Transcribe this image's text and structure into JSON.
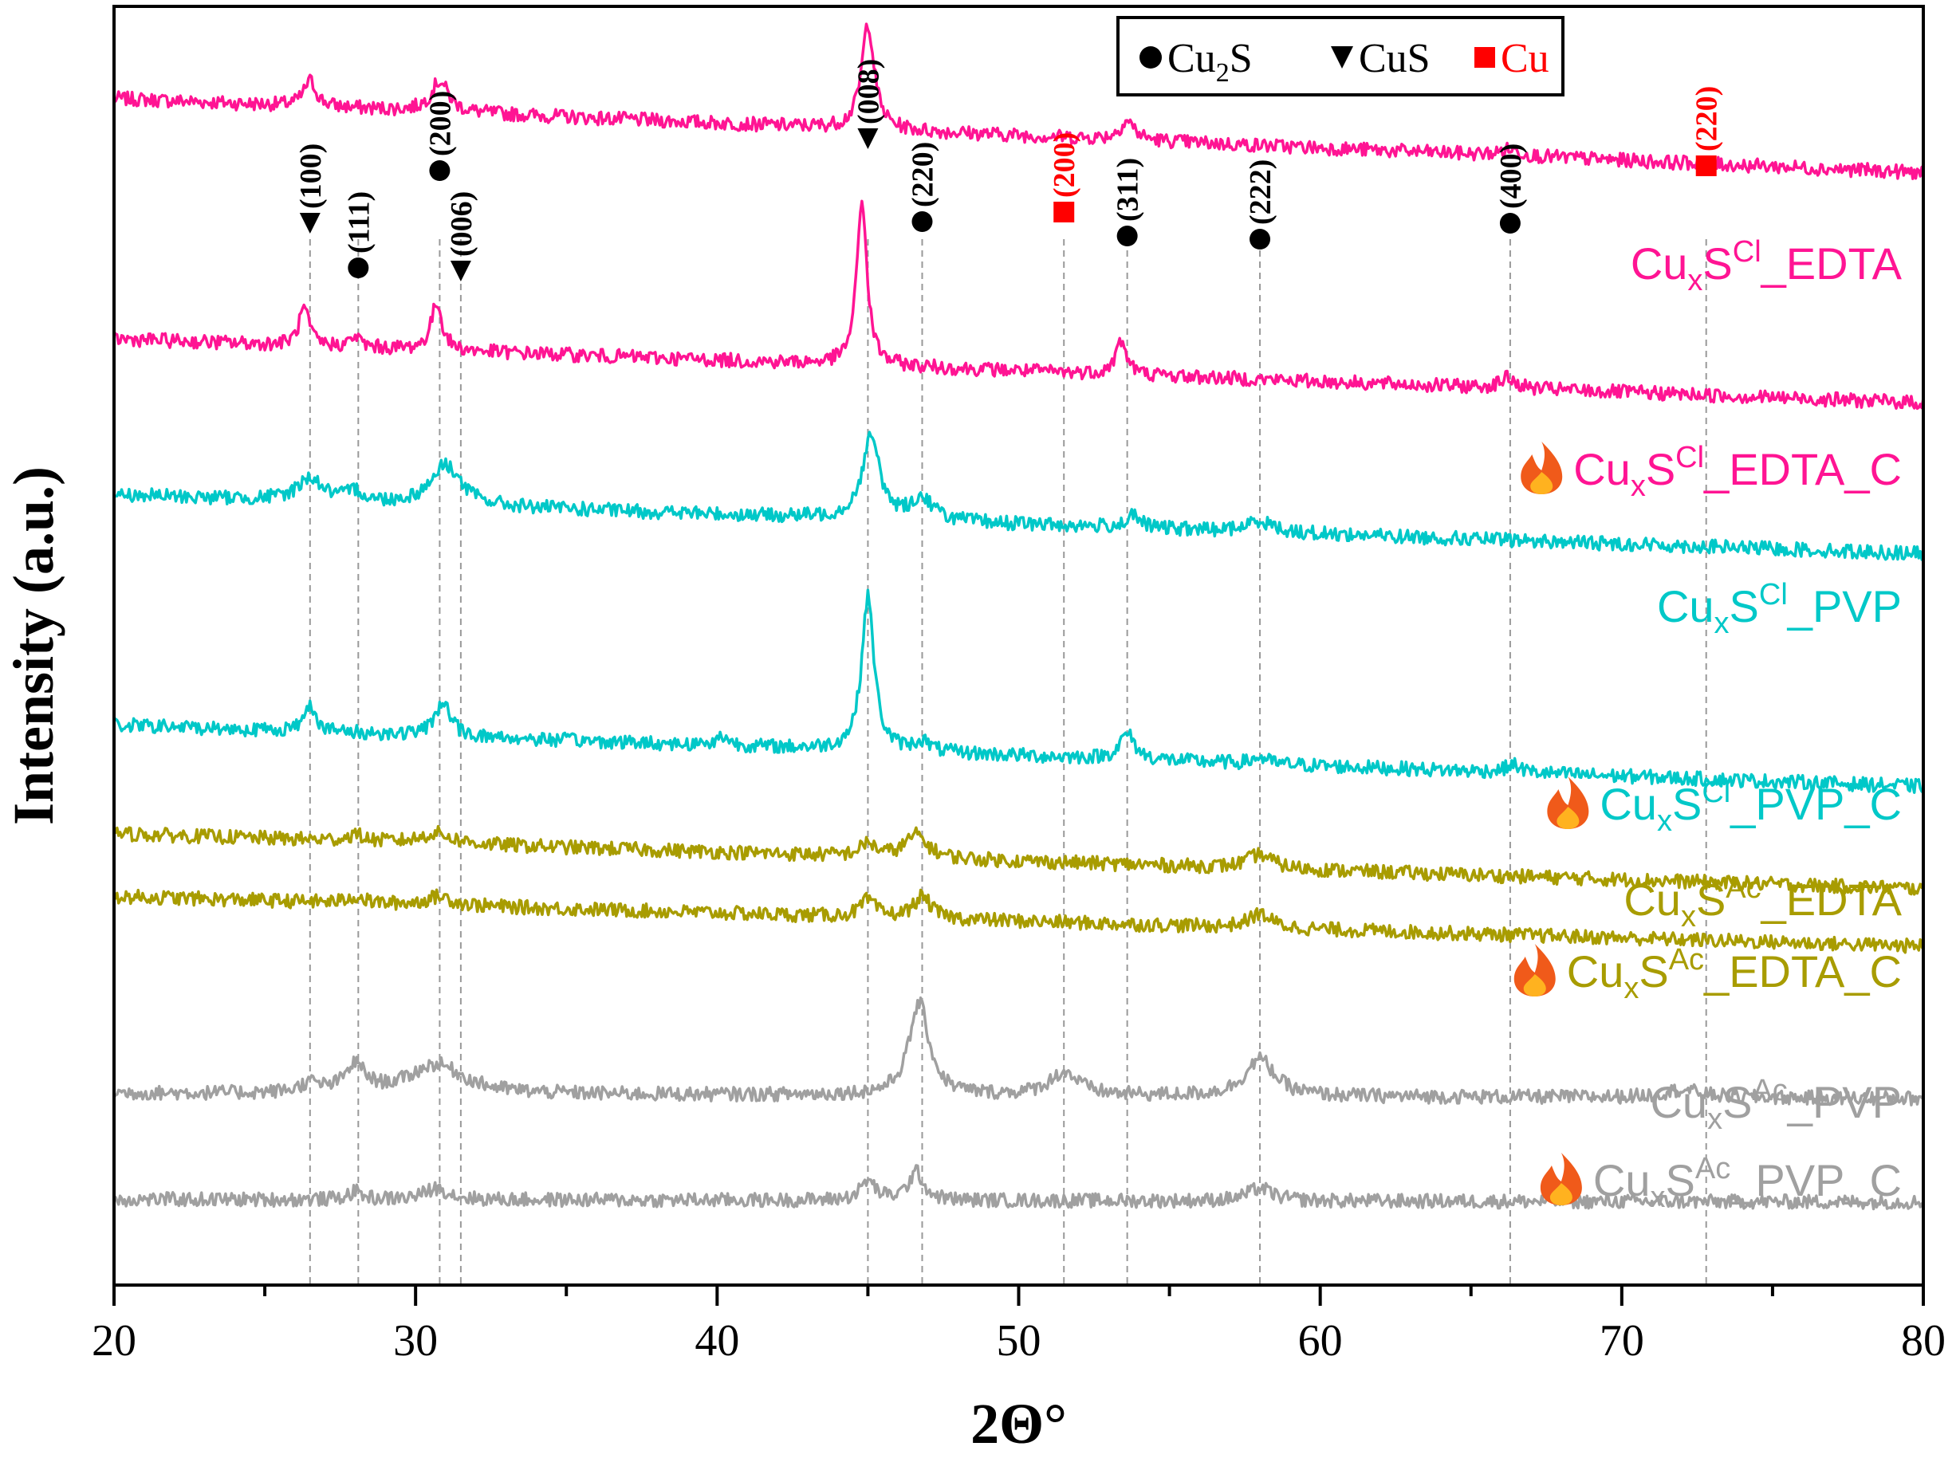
{
  "chart_data": {
    "type": "line",
    "title": "",
    "xlabel": "2Θ°",
    "ylabel": "Intensity (a.u.)",
    "xlim": [
      20,
      80
    ],
    "xticks": [
      20,
      30,
      40,
      50,
      60,
      70,
      80
    ],
    "yticks_shown": false,
    "legend": {
      "placement": "top-center",
      "entries": [
        {
          "marker": "circle",
          "text": "Cu2S",
          "text_parts": [
            "Cu",
            "2",
            "S"
          ],
          "color": "#000000"
        },
        {
          "marker": "triangle-down",
          "text": "CuS",
          "color": "#000000"
        },
        {
          "marker": "square",
          "text": "Cu",
          "color": "#ff0000"
        }
      ]
    },
    "reference_peaks": [
      {
        "two_theta": 26.5,
        "hkl": "(100)",
        "phase": "CuS",
        "marker": "triangle-down",
        "color": "#000000"
      },
      {
        "two_theta": 28.1,
        "hkl": "(111)",
        "phase": "Cu2S",
        "marker": "circle",
        "color": "#000000"
      },
      {
        "two_theta": 30.8,
        "hkl": "(200)",
        "phase": "Cu2S",
        "marker": "circle",
        "color": "#000000"
      },
      {
        "two_theta": 31.5,
        "hkl": "(006)",
        "phase": "CuS",
        "marker": "triangle-down",
        "color": "#000000"
      },
      {
        "two_theta": 45.0,
        "hkl": "(008)",
        "phase": "CuS",
        "marker": "triangle-down",
        "color": "#000000"
      },
      {
        "two_theta": 46.8,
        "hkl": "(220)",
        "phase": "Cu2S",
        "marker": "circle",
        "color": "#000000"
      },
      {
        "two_theta": 51.5,
        "hkl": "(200)",
        "phase": "Cu",
        "marker": "square",
        "color": "#ff0000"
      },
      {
        "two_theta": 53.6,
        "hkl": "(311)",
        "phase": "Cu2S",
        "marker": "circle",
        "color": "#000000"
      },
      {
        "two_theta": 58.0,
        "hkl": "(222)",
        "phase": "Cu2S",
        "marker": "circle",
        "color": "#000000"
      },
      {
        "two_theta": 66.3,
        "hkl": "(400)",
        "phase": "Cu2S",
        "marker": "circle",
        "color": "#000000"
      },
      {
        "two_theta": 72.8,
        "hkl": "(220)",
        "phase": "Cu",
        "marker": "square",
        "color": "#ff0000"
      }
    ],
    "series": [
      {
        "name": "CuxSCl_EDTA",
        "label_parts": [
          "Cu",
          "x",
          "S",
          "Cl",
          "_EDTA"
        ],
        "calcined": false,
        "color": "#ff1493",
        "baseline_start": 0.928,
        "baseline_end": 0.87,
        "peaks": [
          [
            26.5,
            0.02,
            0.25
          ],
          [
            30.8,
            0.024,
            0.35
          ],
          [
            45.0,
            0.083,
            0.25
          ],
          [
            53.6,
            0.015,
            0.3
          ],
          [
            66.3,
            0.005,
            0.4
          ]
        ]
      },
      {
        "name": "CuxSCl_EDTA_C",
        "label_parts": [
          "Cu",
          "x",
          "S",
          "Cl",
          "_EDTA_C"
        ],
        "calcined": true,
        "color": "#ff1493",
        "baseline_start": 0.74,
        "baseline_end": 0.69,
        "peaks": [
          [
            26.3,
            0.029,
            0.2
          ],
          [
            28.0,
            0.008,
            0.2
          ],
          [
            30.7,
            0.037,
            0.22
          ],
          [
            44.8,
            0.13,
            0.2
          ],
          [
            53.4,
            0.026,
            0.22
          ],
          [
            66.2,
            0.008,
            0.3
          ]
        ]
      },
      {
        "name": "CuxSCl_PVP",
        "label_parts": [
          "Cu",
          "x",
          "S",
          "Cl",
          "_PVP"
        ],
        "calcined": false,
        "color": "#00c8c8",
        "baseline_start": 0.618,
        "baseline_end": 0.572,
        "peaks": [
          [
            26.5,
            0.018,
            0.5
          ],
          [
            28.0,
            0.008,
            0.3
          ],
          [
            31.0,
            0.032,
            0.6
          ],
          [
            45.1,
            0.064,
            0.35
          ],
          [
            46.8,
            0.017,
            0.45
          ],
          [
            53.8,
            0.009,
            0.3
          ],
          [
            58.0,
            0.009,
            0.5
          ]
        ]
      },
      {
        "name": "CuxSCl_PVP_C",
        "label_parts": [
          "Cu",
          "x",
          "S",
          "Cl",
          "_PVP_C"
        ],
        "calcined": true,
        "color": "#00c8c8",
        "baseline_start": 0.438,
        "baseline_end": 0.39,
        "peaks": [
          [
            26.5,
            0.022,
            0.22
          ],
          [
            30.9,
            0.027,
            0.3
          ],
          [
            40.2,
            0.007,
            0.25
          ],
          [
            45.0,
            0.12,
            0.25
          ],
          [
            46.8,
            0.008,
            0.3
          ],
          [
            53.6,
            0.02,
            0.3
          ],
          [
            58.0,
            0.005,
            0.3
          ],
          [
            66.4,
            0.006,
            0.3
          ]
        ]
      },
      {
        "name": "CuxSAc_EDTA",
        "label_parts": [
          "Cu",
          "x",
          "S",
          "Ac",
          "_EDTA"
        ],
        "calcined": false,
        "color": "#a89c00",
        "baseline_start": 0.353,
        "baseline_end": 0.31,
        "peaks": [
          [
            28.0,
            0.005,
            0.3
          ],
          [
            30.7,
            0.008,
            0.6
          ],
          [
            45.0,
            0.01,
            0.3
          ],
          [
            46.6,
            0.018,
            0.45
          ],
          [
            58.0,
            0.011,
            0.5
          ]
        ]
      },
      {
        "name": "CuxSAc_EDTA_C",
        "label_parts": [
          "Cu",
          "x",
          "S",
          "Ac",
          "_EDTA_C"
        ],
        "calcined": true,
        "color": "#a89c00",
        "baseline_start": 0.304,
        "baseline_end": 0.265,
        "peaks": [
          [
            28.0,
            0.005,
            0.3
          ],
          [
            30.8,
            0.007,
            0.5
          ],
          [
            45.0,
            0.013,
            0.3
          ],
          [
            46.8,
            0.017,
            0.35
          ],
          [
            58.0,
            0.011,
            0.45
          ]
        ]
      },
      {
        "name": "CuxSAc_PVP",
        "label_parts": [
          "Cu",
          "x",
          "S",
          "Ac",
          "_PVP"
        ],
        "calcined": false,
        "color": "#a0a0a0",
        "baseline_start": 0.15,
        "baseline_end": 0.146,
        "peaks": [
          [
            26.5,
            0.007,
            0.4
          ],
          [
            28.0,
            0.021,
            0.4
          ],
          [
            30.7,
            0.023,
            1.1
          ],
          [
            46.7,
            0.072,
            0.4
          ],
          [
            51.5,
            0.018,
            0.6
          ],
          [
            58.0,
            0.029,
            0.6
          ],
          [
            72.0,
            0.006,
            0.8
          ]
        ]
      },
      {
        "name": "CuxSAc_PVP_C",
        "label_parts": [
          "Cu",
          "x",
          "S",
          "Ac",
          "_PVP_C"
        ],
        "calcined": true,
        "color": "#a0a0a0",
        "baseline_start": 0.067,
        "baseline_end": 0.065,
        "peaks": [
          [
            28.0,
            0.006,
            0.3
          ],
          [
            30.7,
            0.009,
            0.5
          ],
          [
            45.0,
            0.015,
            0.3
          ],
          [
            46.6,
            0.022,
            0.3
          ],
          [
            58.0,
            0.01,
            0.5
          ]
        ]
      }
    ]
  }
}
